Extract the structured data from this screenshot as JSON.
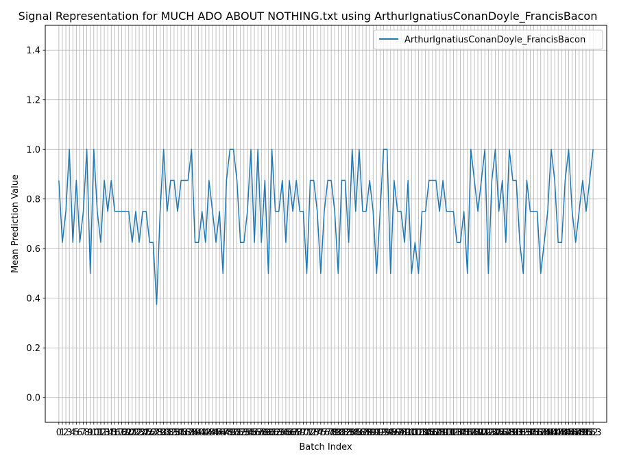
{
  "chart_data": {
    "type": "line",
    "title": "Signal Representation for MUCH ADO ABOUT NOTHING.txt using ArthurIgnatiusConanDoyle_FrancisBacon",
    "xlabel": "Batch Index",
    "ylabel": "Mean Prediction Value",
    "ylim": [
      -0.1,
      1.5
    ],
    "yticks": [
      0.0,
      0.2,
      0.4,
      0.6,
      0.8,
      1.0,
      1.2,
      1.4
    ],
    "xlim": [
      -3.9,
      156.9
    ],
    "grid": true,
    "legend_placement": "top-right",
    "series": [
      {
        "name": "ArthurIgnatiusConanDoyle_FrancisBacon",
        "color": "#1f77b4",
        "x": [
          0,
          1,
          2,
          3,
          4,
          5,
          6,
          7,
          8,
          9,
          10,
          11,
          12,
          13,
          14,
          15,
          16,
          17,
          18,
          19,
          20,
          21,
          22,
          23,
          24,
          25,
          26,
          27,
          28,
          29,
          30,
          31,
          32,
          33,
          34,
          35,
          36,
          37,
          38,
          39,
          40,
          41,
          42,
          43,
          44,
          45,
          46,
          47,
          48,
          49,
          50,
          51,
          52,
          53,
          54,
          55,
          56,
          57,
          58,
          59,
          60,
          61,
          62,
          63,
          64,
          65,
          66,
          67,
          68,
          69,
          70,
          71,
          72,
          73,
          74,
          75,
          76,
          77,
          78,
          79,
          80,
          81,
          82,
          83,
          84,
          85,
          86,
          87,
          88,
          89,
          90,
          91,
          92,
          93,
          94,
          95,
          96,
          97,
          98,
          99,
          100,
          101,
          102,
          103,
          104,
          105,
          106,
          107,
          108,
          109,
          110,
          111,
          112,
          113,
          114,
          115,
          116,
          117,
          118,
          119,
          120,
          121,
          122,
          123,
          124,
          125,
          126,
          127,
          128,
          129,
          130,
          131,
          132,
          133,
          134,
          135,
          136,
          137,
          138,
          139,
          140,
          141,
          142,
          143,
          144,
          145,
          146,
          147,
          148,
          149,
          150,
          151,
          152,
          153
        ],
        "values": [
          0.875,
          0.625,
          0.75,
          1.0,
          0.625,
          0.875,
          0.625,
          0.75,
          1.0,
          0.5,
          1.0,
          0.75,
          0.625,
          0.875,
          0.75,
          0.875,
          0.75,
          0.75,
          0.75,
          0.75,
          0.75,
          0.625,
          0.75,
          0.625,
          0.75,
          0.75,
          0.625,
          0.625,
          0.375,
          0.75,
          1.0,
          0.75,
          0.875,
          0.875,
          0.75,
          0.875,
          0.875,
          0.875,
          1.0,
          0.625,
          0.625,
          0.75,
          0.625,
          0.875,
          0.75,
          0.625,
          0.75,
          0.5,
          0.875,
          1.0,
          1.0,
          0.875,
          0.625,
          0.625,
          0.75,
          1.0,
          0.625,
          1.0,
          0.625,
          0.875,
          0.5,
          1.0,
          0.75,
          0.75,
          0.875,
          0.625,
          0.875,
          0.75,
          0.875,
          0.75,
          0.75,
          0.5,
          0.875,
          0.875,
          0.75,
          0.5,
          0.75,
          0.875,
          0.875,
          0.75,
          0.5,
          0.875,
          0.875,
          0.625,
          1.0,
          0.75,
          1.0,
          0.75,
          0.75,
          0.875,
          0.75,
          0.5,
          0.75,
          1.0,
          1.0,
          0.5,
          0.875,
          0.75,
          0.75,
          0.625,
          0.875,
          0.5,
          0.625,
          0.5,
          0.75,
          0.75,
          0.875,
          0.875,
          0.875,
          0.75,
          0.875,
          0.75,
          0.75,
          0.75,
          0.625,
          0.625,
          0.75,
          0.5,
          1.0,
          0.875,
          0.75,
          0.875,
          1.0,
          0.5,
          0.875,
          1.0,
          0.75,
          0.875,
          0.625,
          1.0,
          0.875,
          0.875,
          0.625,
          0.5,
          0.875,
          0.75,
          0.75,
          0.75,
          0.5,
          0.625,
          0.75,
          1.0,
          0.875,
          0.625,
          0.625,
          0.875,
          1.0,
          0.75,
          0.625,
          0.75,
          0.875,
          0.75,
          0.875,
          1.0
        ]
      }
    ],
    "xtick_labels": [
      "0",
      "1",
      "2",
      "3",
      "4",
      "5",
      "6",
      "7",
      "8",
      "9",
      "10",
      "11",
      "12",
      "13",
      "14",
      "15",
      "16",
      "17",
      "18",
      "19",
      "20",
      "21",
      "22",
      "23",
      "24",
      "25",
      "26",
      "27",
      "28",
      "29",
      "30",
      "31",
      "32",
      "33",
      "34",
      "35",
      "36",
      "37",
      "38",
      "39",
      "40",
      "41",
      "42",
      "43",
      "44",
      "45",
      "46",
      "47",
      "48",
      "49",
      "50",
      "51",
      "52",
      "53",
      "54",
      "55",
      "56",
      "57",
      "58",
      "59",
      "60",
      "61",
      "62",
      "63",
      "64",
      "65",
      "66",
      "67",
      "68",
      "69",
      "70",
      "71",
      "72",
      "73",
      "74",
      "75",
      "76",
      "77",
      "78",
      "79",
      "80",
      "81",
      "82",
      "83",
      "84",
      "85",
      "86",
      "87",
      "88",
      "89",
      "90",
      "91",
      "92",
      "93",
      "94",
      "95",
      "96",
      "97",
      "98",
      "99",
      "100",
      "101",
      "102",
      "103",
      "104",
      "105",
      "106",
      "107",
      "108",
      "109",
      "110",
      "111",
      "112",
      "113",
      "114",
      "115",
      "116",
      "117",
      "118",
      "119",
      "120",
      "121",
      "122",
      "123",
      "124",
      "125",
      "126",
      "127",
      "128",
      "129",
      "130",
      "131",
      "132",
      "133",
      "134",
      "135",
      "136",
      "137",
      "138",
      "139",
      "140",
      "141",
      "142",
      "143",
      "144",
      "145",
      "146",
      "147",
      "148",
      "149",
      "150",
      "151",
      "152",
      "153"
    ]
  }
}
